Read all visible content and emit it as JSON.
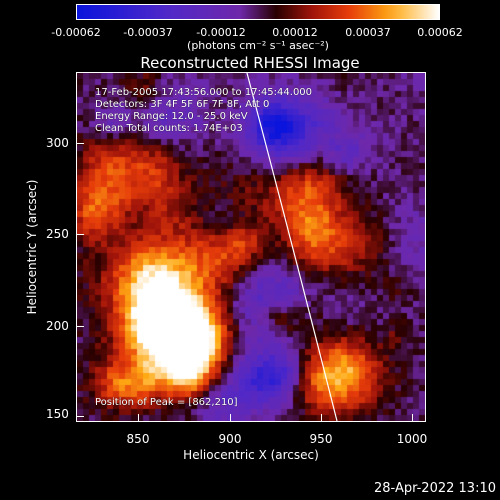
{
  "title": "Reconstructed RHESSI Image",
  "colorbar": {
    "tick_labels": [
      "-0.00062",
      "-0.00037",
      "-0.00012",
      "0.00012",
      "0.00037",
      "0.00062"
    ],
    "units": "(photons cm⁻² s⁻¹ asec⁻²)",
    "range": [
      -0.00062,
      0.00062
    ]
  },
  "annotations": {
    "time": "17-Feb-2005 17:43:56.000 to 17:45:44.000",
    "detectors": "Detectors: 3F 4F 5F 6F 7F 8F, Att 0",
    "energy": "Energy Range: 12.0 - 25.0 keV",
    "clean": "Clean    Total counts: 1.74E+03",
    "peak": "Position of Peak = [862,210]"
  },
  "axes": {
    "xlabel": "Heliocentric X (arcsec)",
    "ylabel": "Heliocentric Y (arcsec)",
    "xticks": [
      "850",
      "900",
      "950",
      "1000"
    ],
    "yticks": [
      "300",
      "250",
      "200",
      "150"
    ],
    "xlim": [
      818,
      1030
    ],
    "ylim": [
      148,
      338
    ]
  },
  "timestamp": "28-Apr-2022 13:10"
}
